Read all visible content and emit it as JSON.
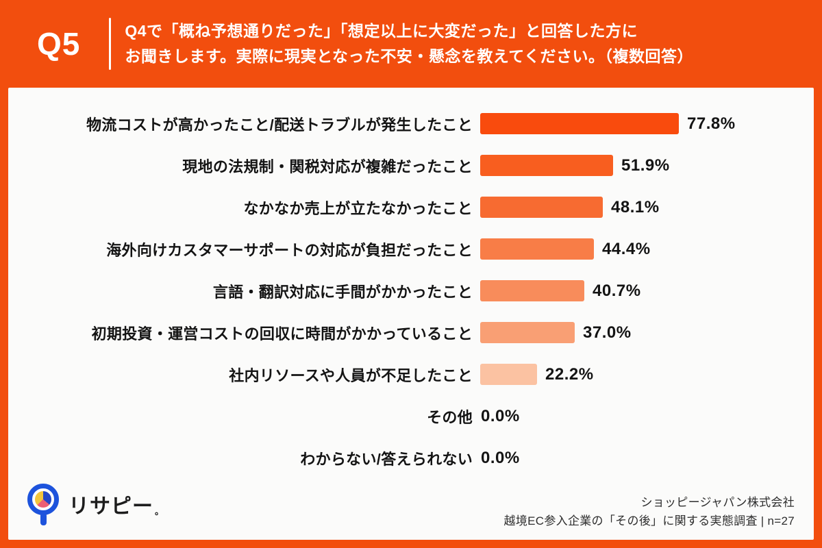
{
  "header": {
    "q_label": "Q5",
    "question_line1": "Q4で「概ね予想通りだった」「想定以上に大変だった」と回答した方に",
    "question_line2": "お聞きします。実際に現実となった不安・懸念を教えてください。（複数回答）"
  },
  "chart_data": {
    "type": "bar",
    "orientation": "horizontal",
    "title": "Q4で「概ね予想通りだった」「想定以上に大変だった」と回答した方にお聞きします。実際に現実となった不安・懸念を教えてください。（複数回答）",
    "categories": [
      "物流コストが高かったこと/配送トラブルが発生したこと",
      "現地の法規制・関税対応が複雑だったこと",
      "なかなか売上が立たなかったこと",
      "海外向けカスタマーサポートの対応が負担だったこと",
      "言語・翻訳対応に手間がかかったこと",
      "初期投資・運営コストの回収に時間がかかっていること",
      "社内リソースや人員が不足したこと",
      "その他",
      "わからない/答えられない"
    ],
    "values": [
      77.8,
      51.9,
      48.1,
      44.4,
      40.7,
      37.0,
      22.2,
      0.0,
      0.0
    ],
    "value_labels": [
      "77.8%",
      "51.9%",
      "48.1%",
      "44.4%",
      "40.7%",
      "37.0%",
      "22.2%",
      "0.0%",
      "0.0%"
    ],
    "bar_colors": [
      "#F94B0D",
      "#F85E1F",
      "#F76B31",
      "#F87D47",
      "#F88C5B",
      "#F99F74",
      "#FBC2A2",
      "#FBC2A2",
      "#FBC2A2"
    ],
    "xlim": [
      0,
      100
    ],
    "grid": false,
    "legend": false,
    "sample_size": "n=27"
  },
  "footer": {
    "logo_text": "リサピー",
    "logo_suffix": "。",
    "company": "ショッピージャパン株式会社",
    "survey": "越境EC参入企業の「その後」に関する実態調査 | n=27"
  },
  "colors": {
    "accent_orange": "#F24E0E",
    "panel_bg": "#FBFBFA",
    "text_dark": "#141414",
    "logo_blue": "#1D53DC",
    "pie_yellow": "#F3C53C",
    "pie_blue": "#2547C6",
    "pie_pink": "#EE5F74"
  }
}
